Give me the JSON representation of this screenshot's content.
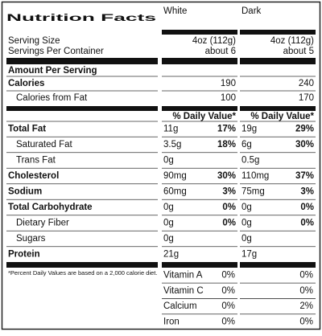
{
  "title": "Nutrition Facts",
  "columns": [
    "White",
    "Dark"
  ],
  "serving_size": {
    "label": "Serving Size",
    "values": [
      "4oz (112g)",
      "4oz (112g)"
    ]
  },
  "servings_per_container": {
    "label": "Servings Per Container",
    "values": [
      "about 6",
      "about 5"
    ]
  },
  "amount_per_serving": "Amount Per Serving",
  "calories": {
    "label": "Calories",
    "values": [
      190,
      240
    ]
  },
  "calories_from_fat": {
    "label": "Calories from Fat",
    "values": [
      100,
      170
    ]
  },
  "daily_value_header": "% Daily Value*",
  "nutrients": [
    {
      "label": "Total Fat",
      "bold": true,
      "indent": false,
      "amounts": [
        "11g",
        "19g"
      ],
      "daily_values": [
        "17%",
        "29%"
      ]
    },
    {
      "label": "Saturated Fat",
      "bold": false,
      "indent": true,
      "amounts": [
        "3.5g",
        "6g"
      ],
      "daily_values": [
        "18%",
        "30%"
      ]
    },
    {
      "label": "Trans Fat",
      "bold": false,
      "indent": true,
      "amounts": [
        "0g",
        "0.5g"
      ]
    },
    {
      "label": "Cholesterol",
      "bold": true,
      "indent": false,
      "amounts": [
        "90mg",
        "110mg"
      ],
      "daily_values": [
        "30%",
        "37%"
      ]
    },
    {
      "label": "Sodium",
      "bold": true,
      "indent": false,
      "amounts": [
        "60mg",
        "75mg"
      ],
      "daily_values": [
        "3%",
        "3%"
      ]
    },
    {
      "label": "Total Carbohydrate",
      "bold": true,
      "indent": false,
      "amounts": [
        "0g",
        "0g"
      ],
      "daily_values": [
        "0%",
        "0%"
      ]
    },
    {
      "label": "Dietary Fiber",
      "bold": false,
      "indent": true,
      "amounts": [
        "0g",
        "0g"
      ],
      "daily_values": [
        "0%",
        "0%"
      ]
    },
    {
      "label": "Sugars",
      "bold": false,
      "indent": true,
      "amounts": [
        "0g",
        "0g"
      ]
    },
    {
      "label": "Protein",
      "bold": true,
      "indent": false,
      "amounts": [
        "21g",
        "17g"
      ]
    }
  ],
  "footnote": "*Percent Daily Values are based on a 2,000 calorie diet.",
  "vitamins": [
    {
      "label": "Vitamin A",
      "values": [
        "0%",
        "0%"
      ]
    },
    {
      "label": "Vitamin C",
      "values": [
        "0%",
        "0%"
      ]
    },
    {
      "label": "Calcium",
      "values": [
        "0%",
        "2%"
      ]
    },
    {
      "label": "Iron",
      "values": [
        "0%",
        "0%"
      ]
    }
  ]
}
